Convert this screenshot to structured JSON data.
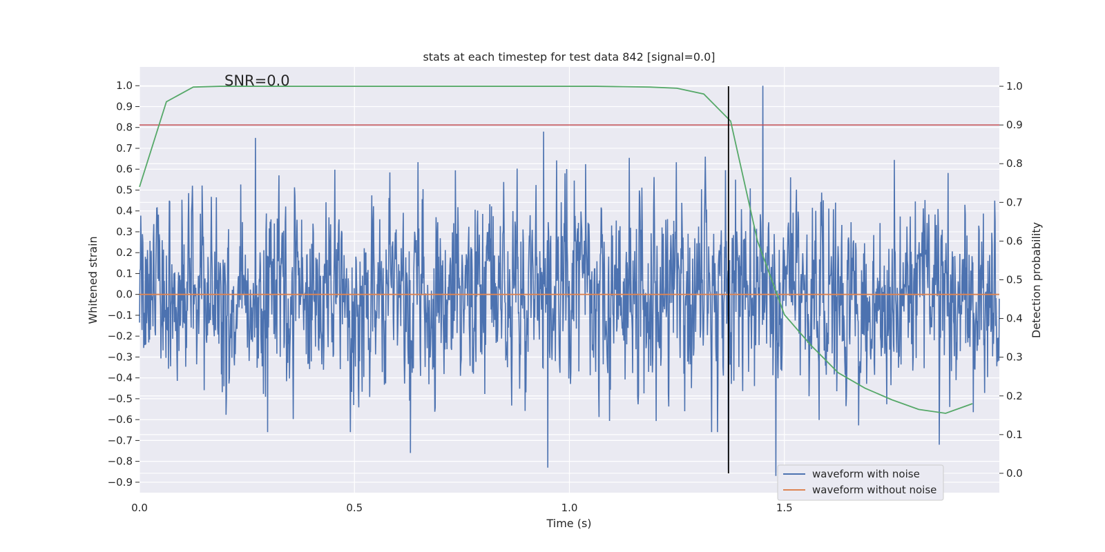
{
  "chart_data": {
    "type": "line",
    "title": "stats at each timestep for test data 842 [signal=0.0]",
    "xlabel": "Time (s)",
    "ylabel_left": "Whitened strain",
    "ylabel_right": "Detection probability",
    "annotation": "SNR=0.0",
    "xlim": [
      0.0,
      2.0
    ],
    "ylim_left": [
      -0.95,
      1.09
    ],
    "ylim_right": [
      -0.05,
      1.05
    ],
    "x_ticks": [
      0.0,
      0.5,
      1.0,
      1.5
    ],
    "x_tick_labels": [
      "0.0",
      "0.5",
      "1.0",
      "1.5"
    ],
    "y_left_ticks": [
      1.0,
      0.9,
      0.8,
      0.7,
      0.6,
      0.5,
      0.4,
      0.3,
      0.2,
      0.1,
      0.0,
      -0.1,
      -0.2,
      -0.3,
      -0.4,
      -0.5,
      -0.6,
      -0.7,
      -0.8,
      -0.9
    ],
    "y_left_tick_labels": [
      "1.0",
      "0.9",
      "0.8",
      "0.7",
      "0.6",
      "0.5",
      "0.4",
      "0.3",
      "0.2",
      "0.1",
      "0.0",
      "−0.1",
      "−0.2",
      "−0.3",
      "−0.4",
      "−0.5",
      "−0.6",
      "−0.7",
      "−0.8",
      "−0.9"
    ],
    "y_right_ticks": [
      1.0,
      0.9,
      0.8,
      0.7,
      0.6,
      0.5,
      0.4,
      0.3,
      0.2,
      0.1,
      0.0
    ],
    "y_right_tick_labels": [
      "1.0",
      "0.9",
      "0.8",
      "0.7",
      "0.6",
      "0.5",
      "0.4",
      "0.3",
      "0.2",
      "0.1",
      "0.0"
    ],
    "grid": true,
    "legend_position": "lower-right",
    "legend": [
      "waveform with noise",
      "waveform without noise"
    ],
    "series": [
      {
        "name": "waveform with noise",
        "axis": "left",
        "color": "#4c72b0",
        "x_range": [
          0.0,
          2.0
        ],
        "n_samples": 2048,
        "amplitude_sd": 0.23,
        "peaks": [
          {
            "x": 1.45,
            "y": 1.0
          },
          {
            "x": 1.48,
            "y": -0.87
          },
          {
            "x": 1.37,
            "y": -0.84
          },
          {
            "x": 0.95,
            "y": -0.83
          },
          {
            "x": 0.94,
            "y": 0.78
          },
          {
            "x": 0.27,
            "y": 0.75
          },
          {
            "x": 0.63,
            "y": -0.76
          },
          {
            "x": 1.86,
            "y": -0.72
          }
        ]
      },
      {
        "name": "waveform without noise",
        "axis": "left",
        "color": "#dd8452",
        "x": [
          0.0,
          2.0
        ],
        "y": [
          0.0,
          0.0
        ]
      },
      {
        "axis": "right",
        "color": "#55a868",
        "x": [
          0.0,
          0.0625,
          0.125,
          0.1875,
          0.25,
          0.3125,
          0.375,
          0.4375,
          0.5,
          0.5625,
          0.625,
          0.6875,
          0.75,
          0.8125,
          0.875,
          0.9375,
          1.0,
          1.0625,
          1.125,
          1.1875,
          1.25,
          1.3125,
          1.375,
          1.4375,
          1.5,
          1.5625,
          1.625,
          1.6875,
          1.75,
          1.8125,
          1.875,
          1.9375
        ],
        "y": [
          0.74,
          0.96,
          0.998,
          1.0,
          1.0,
          1.0,
          1.0,
          1.0,
          1.0,
          1.0,
          1.0,
          1.0,
          1.0,
          1.0,
          1.0,
          1.0,
          1.0,
          1.0,
          0.999,
          0.998,
          0.995,
          0.98,
          0.91,
          0.6,
          0.41,
          0.33,
          0.26,
          0.22,
          0.19,
          0.165,
          0.155,
          0.18
        ]
      }
    ],
    "threshold_line": {
      "axis": "right",
      "y": 0.9,
      "color": "#c44e52"
    },
    "marker_line": {
      "x": 1.37,
      "y_range": [
        0.0,
        1.0
      ],
      "color": "#000000"
    }
  }
}
